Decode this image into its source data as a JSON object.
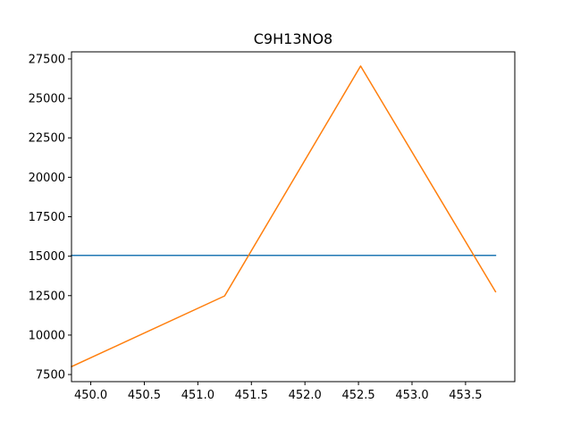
{
  "chart_data": {
    "type": "line",
    "title": "C9H13NO8",
    "xlabel": "",
    "ylabel": "",
    "xlim": [
      449.82,
      453.96
    ],
    "ylim": [
      7050,
      27950
    ],
    "grid": false,
    "x_ticks": [
      450.0,
      450.5,
      451.0,
      451.5,
      452.0,
      452.5,
      453.0,
      453.5
    ],
    "x_tick_labels": [
      "450.0",
      "450.5",
      "451.0",
      "451.5",
      "452.0",
      "452.5",
      "453.0",
      "453.5"
    ],
    "y_ticks": [
      7500,
      10000,
      12500,
      15000,
      17500,
      20000,
      22500,
      25000,
      27500
    ],
    "y_tick_labels": [
      "7500",
      "10000",
      "12500",
      "15000",
      "17500",
      "20000",
      "22500",
      "25000",
      "27500"
    ],
    "series": [
      {
        "color": "#1f77b4",
        "x": [
          449.82,
          453.78
        ],
        "y": [
          15050,
          15050
        ]
      },
      {
        "color": "#ff7f0e",
        "x": [
          449.82,
          451.25,
          452.52,
          453.78
        ],
        "y": [
          8000,
          12480,
          27050,
          12750
        ]
      }
    ]
  }
}
